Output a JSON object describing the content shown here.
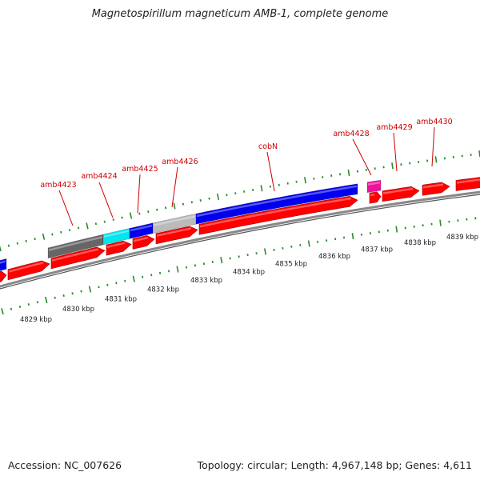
{
  "title": "Magnetospirillum magneticum AMB-1, complete genome",
  "footer": {
    "accession": "Accession: NC_007626",
    "summary": "Topology: circular; Length: 4,967,148 bp; Genes: 4,611"
  },
  "colors": {
    "cds": "#ff0000",
    "blue": "#0000ee",
    "cyan": "#00e5ee",
    "dark_gray": "#666666",
    "light_gray": "#bbbbbb",
    "magenta": "#ee1199",
    "ticks": "#2a8a2a",
    "backbone": "#888888",
    "gene_label": "#cc0000"
  },
  "scale": {
    "kbp_labels": [
      "4829 kbp",
      "4830 kbp",
      "4831 kbp",
      "4832 kbp",
      "4833 kbp",
      "4834 kbp",
      "4835 kbp",
      "4836 kbp",
      "4837 kbp",
      "4838 kbp",
      "4839 kbp"
    ]
  },
  "gene_labels": [
    "amb4423",
    "amb4424",
    "amb4425",
    "amb4426",
    "cobN",
    "amb4428",
    "amb4429",
    "amb4430"
  ]
}
